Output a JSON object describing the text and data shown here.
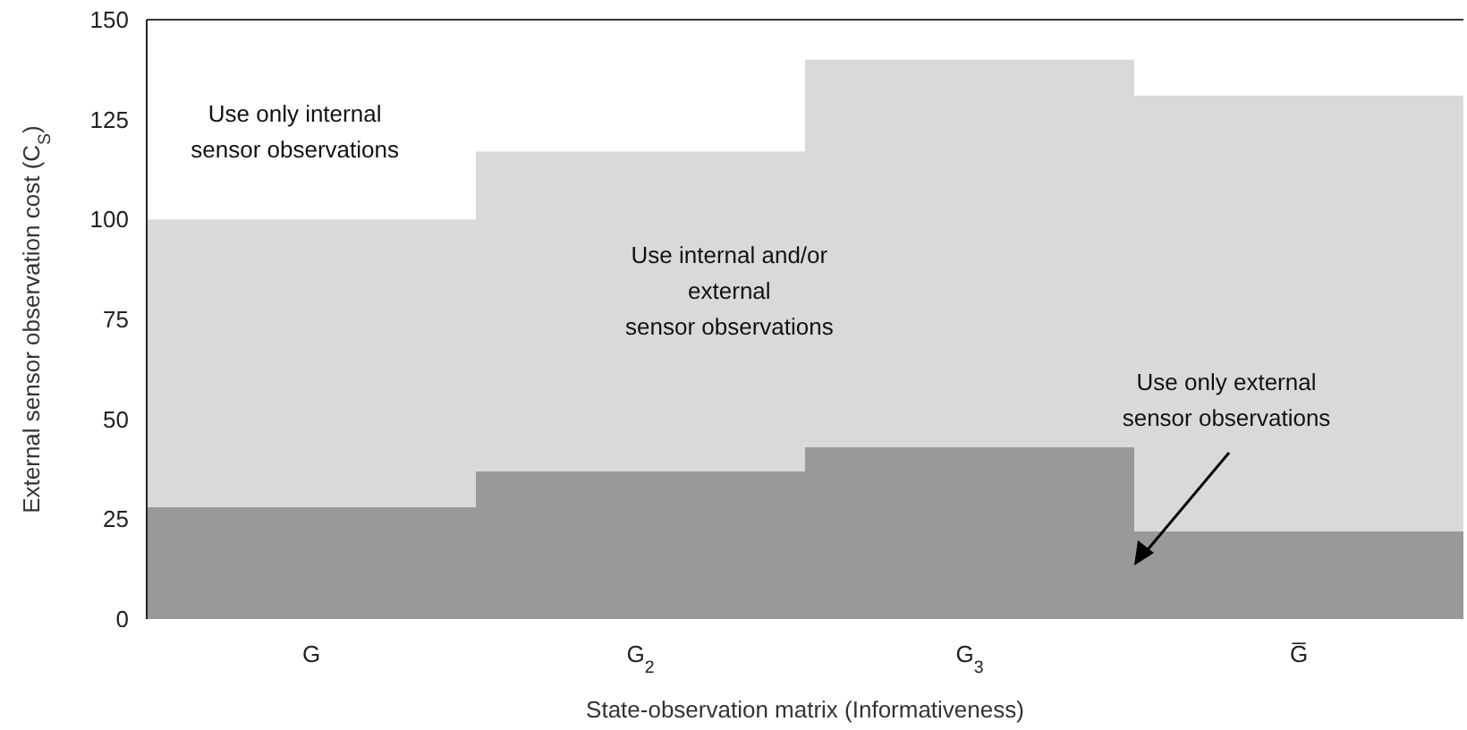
{
  "chart_data": {
    "type": "bar",
    "stacked": true,
    "xlabel": "State-observation matrix (Informativeness)",
    "ylabel": "External sensor observation cost (C$_{S}$)",
    "categories": [
      "G",
      "G$_{2}$",
      "G$_{3}$",
      "G̅"
    ],
    "series": [
      {
        "color": "#999999",
        "values": [
          28,
          37,
          43,
          22
        ]
      },
      {
        "color": "#d9d9d9",
        "values": [
          72,
          80,
          97,
          109
        ]
      }
    ],
    "ylim": [
      0,
      150
    ],
    "yticks": [
      0,
      25,
      50,
      75,
      100,
      125,
      150
    ],
    "annotations": [
      "Use only internal\nsensor observations",
      "Use internal and/or\nexternal\nsensor observations",
      "Use only external\nsensor observations"
    ]
  }
}
